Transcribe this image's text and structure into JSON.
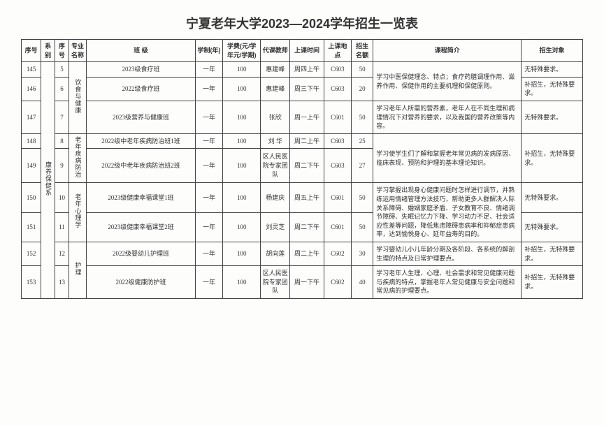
{
  "title": "宁夏老年大学2023—2024学年招生一览表",
  "headers": {
    "seq": "序号",
    "dept": "系别",
    "majorNo": "序号",
    "majorName": "专业名称",
    "className": "班  级",
    "duration": "学制(年)",
    "fee": "学费(元/学年元/学期)",
    "teacher": "代课教师",
    "time": "上课时间",
    "location": "上课地点",
    "quota": "招生名额",
    "desc": "课程简介",
    "target": "招生对象"
  },
  "deptName": "康养保健系",
  "majors": [
    {
      "name": "饮食与健康",
      "rows": 3
    },
    {
      "name": "老年疾病防治",
      "rows": 2
    },
    {
      "name": "老年心理学",
      "rows": 2
    },
    {
      "name": "护理",
      "rows": 2
    }
  ],
  "rows": [
    {
      "seq": "145",
      "mno": "5",
      "class": "2023级食疗班",
      "dur": "一年",
      "fee": "100",
      "teacher": "惠建峰",
      "time": "周四上午",
      "loc": "C603",
      "quota": "50"
    },
    {
      "seq": "146",
      "mno": "6",
      "class": "2022级食疗班",
      "dur": "一年",
      "fee": "100",
      "teacher": "惠建峰",
      "time": "周三下午",
      "loc": "C603",
      "quota": "20"
    },
    {
      "seq": "147",
      "mno": "7",
      "class": "2023级营养与健康班",
      "dur": "一年",
      "fee": "100",
      "teacher": "张欣",
      "time": "周一上午",
      "loc": "C601",
      "quota": "50"
    },
    {
      "seq": "148",
      "mno": "8",
      "class": "2022级中老年疾病防治班1班",
      "dur": "一年",
      "fee": "100",
      "teacher": "刘  华",
      "time": "周二上午",
      "loc": "C603",
      "quota": "25"
    },
    {
      "seq": "149",
      "mno": "9",
      "class": "2022级中老年疾病防治班2班",
      "dur": "一年",
      "fee": "100",
      "teacher": "区人民医院专家团队",
      "time": "周二下午",
      "loc": "C603",
      "quota": "27"
    },
    {
      "seq": "150",
      "mno": "10",
      "class": "2023级健康幸福课堂1班",
      "dur": "一年",
      "fee": "100",
      "teacher": "杨建庆",
      "time": "周五上午",
      "loc": "C601",
      "quota": "50"
    },
    {
      "seq": "151",
      "mno": "11",
      "class": "2023级健康幸福课堂2班",
      "dur": "一年",
      "fee": "100",
      "teacher": "刘灵芝",
      "time": "周二下午",
      "loc": "C601",
      "quota": "50"
    },
    {
      "seq": "152",
      "mno": "12",
      "class": "2022级婴幼儿护理班",
      "dur": "一年",
      "fee": "100",
      "teacher": "胡向莲",
      "time": "周二上午",
      "loc": "C602",
      "quota": "30"
    },
    {
      "seq": "153",
      "mno": "13",
      "class": "2022级健康防护班",
      "dur": "一年",
      "fee": "100",
      "teacher": "区人民医院专家团队",
      "time": "周一下午",
      "loc": "C602",
      "quota": "40"
    }
  ],
  "descs": [
    {
      "text": "学习中医保健理念、特点；食疗药膳调理作用、滋养作用、保健作用的主要机理和保健原则。",
      "rows": 2
    },
    {
      "text": "学习老年人所需的营养素，老年人在不同生理和病理情况下对营养的要求，以及我国的营养改策等内容。",
      "rows": 1
    },
    {
      "text": "学习使学生们了解和掌握老年常见病的发病原因、临床表现、预防和护理的基本理论知识。",
      "rows": 2
    },
    {
      "text": "学习掌握出现身心健康问题时怎样进行调节，并熟练运用情绪管理方法技巧，帮助更多人群解决人际关系障碍、婚姻家庭矛盾、子女教育不良、情绪调节障碍、失眠记忆力下降、学习动力不足、社会适应性差等问题，降低焦虑障碍患病率和抑郁症患病率，达到愉悦身心、延年益寿的目的。",
      "rows": 2
    },
    {
      "text": "学习婴幼儿小儿年龄分期及各阶段、各系统的解剖生理的特点及日常护理要点。",
      "rows": 1
    },
    {
      "text": "学习老年人生理、心理、社会需求和常见健康问题与疾病的特点，掌握老年人常见健康与安全问题和常见病的护理要点。",
      "rows": 1
    }
  ],
  "targets": [
    {
      "text": "无特殊要求。",
      "rows": 1
    },
    {
      "text": "补招生，无特殊要求。",
      "rows": 1
    },
    {
      "text": "无特殊要求。",
      "rows": 1
    },
    {
      "text": "补招生，无特殊要求。",
      "rows": 2
    },
    {
      "text": "无特殊要求。",
      "rows": 1
    },
    {
      "text": "无特殊要求。",
      "rows": 1
    },
    {
      "text": "补招生，无特殊要求。",
      "rows": 1
    },
    {
      "text": "补招生，无特殊要求。",
      "rows": 1
    }
  ]
}
